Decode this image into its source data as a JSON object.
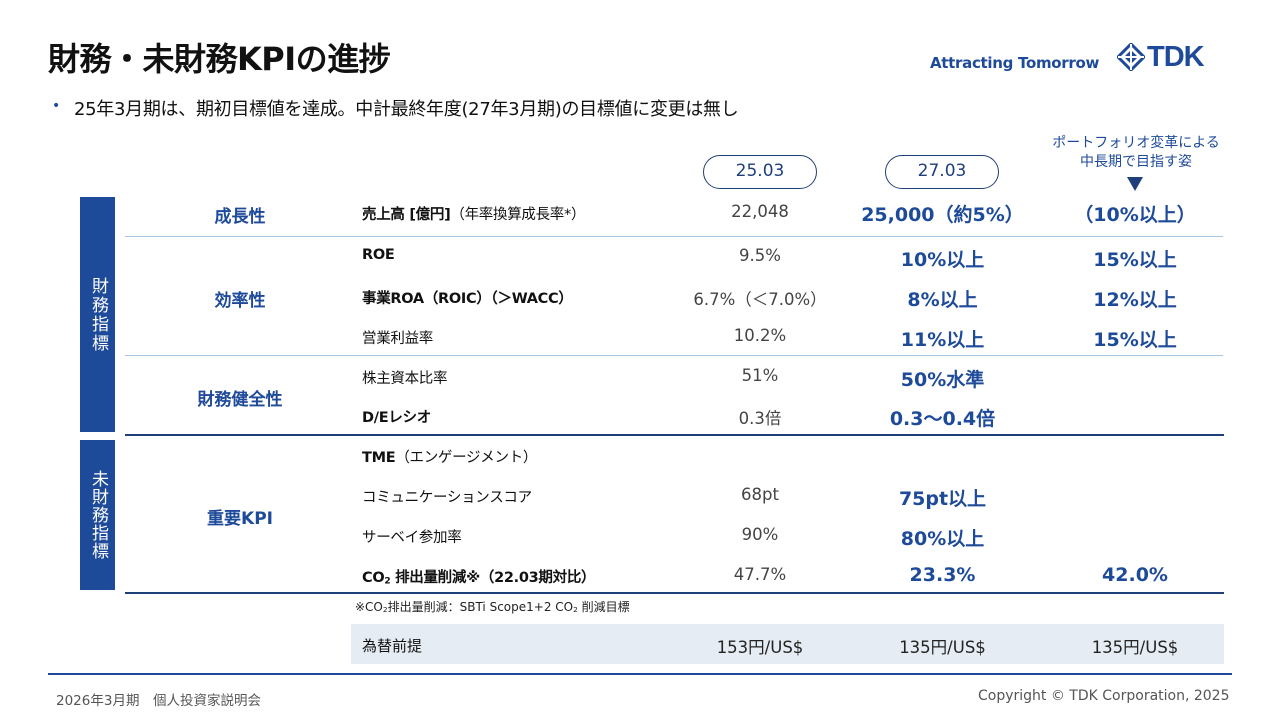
{
  "header": {
    "title": "財務・未財務KPIの進捗",
    "tagline": "Attracting Tomorrow",
    "logo_text": "TDK",
    "logo_icon": "tdk-diamond-logo-icon",
    "accent_color": "#1e4a9a"
  },
  "bullet": "25年3月期は、期初目標値を達成。中計最終年度(27年3月期)の目標値に変更は無し",
  "columns": {
    "actual": "25.03",
    "target": "27.03",
    "vision_line1": "ポートフォリオ変革による",
    "vision_line2": "中長期で目指す姿"
  },
  "bands": {
    "financial": "財務指標",
    "non_financial": "未財務指標"
  },
  "categories": {
    "growth": "成長性",
    "efficiency": "効率性",
    "soundness": "財務健全性",
    "kpi": "重要KPI"
  },
  "rows": {
    "sales": {
      "label_a": "売上高 [億円]",
      "label_b": "（年率換算成長率*）",
      "actual": "22,048",
      "target": "25,000（約5%）",
      "vision": "（10%以上）"
    },
    "roe": {
      "label": "ROE",
      "actual": "9.5%",
      "target": "10%以上",
      "vision": "15%以上"
    },
    "roa": {
      "label_a": "事業ROA（ROIC）（＞WACC）",
      "actual": "6.7%（＜7.0%）",
      "target": "8%以上",
      "vision": "12%以上"
    },
    "opm": {
      "label": "営業利益率",
      "actual": "10.2%",
      "target": "11%以上",
      "vision": "15%以上"
    },
    "equity": {
      "label": "株主資本比率",
      "actual": "51%",
      "target": "50%水準"
    },
    "de": {
      "label": "D/Eレシオ",
      "actual": "0.3倍",
      "target": "0.3～0.4倍"
    },
    "tme": {
      "label_a": "TME",
      "label_b": "（エンゲージメント）"
    },
    "comm": {
      "label": "コミュニケーションスコア",
      "actual": "68pt",
      "target": "75pt以上"
    },
    "survey": {
      "label": "サーベイ参加率",
      "actual": "90%",
      "target": "80%以上"
    },
    "co2": {
      "label_a": "CO",
      "label_sub": "2",
      "label_b": " 排出量削減※（22.03期対比）",
      "actual": "47.7%",
      "target": "23.3%",
      "vision": "42.0%"
    }
  },
  "footnote": {
    "a": "※CO",
    "sub1": "2",
    "b": "排出量削減：SBTi Scope1+2 CO",
    "sub2": "2",
    "c": " 削減目標"
  },
  "fx": {
    "label": "為替前提",
    "actual": "153円/US$",
    "target": "135円/US$",
    "vision": "135円/US$"
  },
  "footer": {
    "left": "2026年3月期　個人投資家説明会",
    "right": "Copyright  © TDK Corporation, 2025"
  }
}
